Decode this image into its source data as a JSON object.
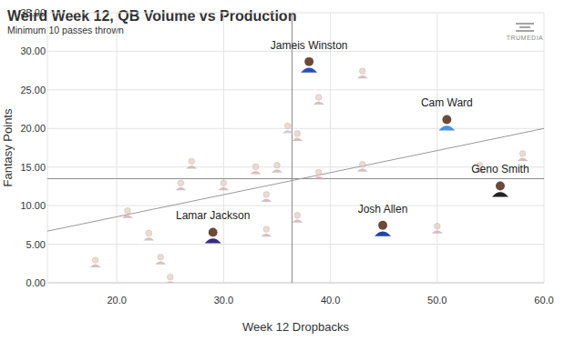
{
  "chart_data": {
    "type": "scatter",
    "title": "Weird Week 12, QB Volume vs Production",
    "subtitle": "Minimum 10 passes thrown",
    "source": "TRUMEDIA",
    "x_label": "Week 12 Dropbacks",
    "y_label": "Fantasy Points",
    "x": [
      18.0,
      21.0,
      23.0,
      24.1,
      25.0,
      26.0,
      27.0,
      29.0,
      30.0,
      33.0,
      34.0,
      34.0,
      35.0,
      36.0,
      36.9,
      36.9,
      38.0,
      38.9,
      38.9,
      43.0,
      43.0,
      44.9,
      50.9,
      50.0,
      54.0,
      55.9,
      58.0
    ],
    "values": [
      2.7,
      9.1,
      6.2,
      3.1,
      0.5,
      12.7,
      15.5,
      6.2,
      12.7,
      14.8,
      11.2,
      6.7,
      15.0,
      20.1,
      19.1,
      8.5,
      28.3,
      23.8,
      14.1,
      27.2,
      15.1,
      7.1,
      20.8,
      7.1,
      15.0,
      12.2,
      16.5
    ],
    "labels": [
      null,
      null,
      null,
      null,
      null,
      null,
      null,
      "Lamar Jackson",
      null,
      null,
      null,
      null,
      null,
      null,
      null,
      null,
      "Jameis Winston",
      null,
      null,
      null,
      null,
      "Josh Allen",
      "Cam Ward",
      null,
      null,
      "Geno Smith",
      null
    ],
    "colors": [
      "#c9aaaa",
      "#c9aaaa",
      "#c9aaaa",
      "#c9aaaa",
      "#c9aaaa",
      "#c9aaaa",
      "#c9aaaa",
      "#3b2a80",
      "#c9aaaa",
      "#c9aaaa",
      "#c9aaaa",
      "#c9aaaa",
      "#c9aaaa",
      "#b9c3d6",
      "#c9aaaa",
      "#c9aaaa",
      "#2a4fb8",
      "#c9aaaa",
      "#c9aaaa",
      "#c9aaaa",
      "#c9aaaa",
      "#2045a8",
      "#4b92db",
      "#c9aaaa",
      "#c9aaaa",
      "#222222",
      "#c9aaaa"
    ],
    "trend_line": {
      "x": [
        13.5,
        60
      ],
      "values": [
        6.7,
        20.0
      ]
    },
    "reference_lines": {
      "x": 36.4,
      "y": 13.5
    },
    "xlim": [
      13.5,
      60
    ],
    "ylim": [
      0,
      35
    ],
    "xticks": [
      {
        "value": 20,
        "label": "20.0"
      },
      {
        "value": 30,
        "label": "30.0"
      },
      {
        "value": 40,
        "label": "40.0"
      },
      {
        "value": 50,
        "label": "50.0"
      },
      {
        "value": 60,
        "label": "60.0"
      }
    ],
    "yticks": [
      {
        "value": 0,
        "label": "0.00"
      },
      {
        "value": 5,
        "label": "5.00"
      },
      {
        "value": 10,
        "label": "10.00"
      },
      {
        "value": 15,
        "label": "15.00"
      },
      {
        "value": 20,
        "label": "20.00"
      },
      {
        "value": 25,
        "label": "25.00"
      },
      {
        "value": 30,
        "label": "30.00"
      },
      {
        "value": 35,
        "label": "35.00"
      }
    ],
    "grid": true
  }
}
